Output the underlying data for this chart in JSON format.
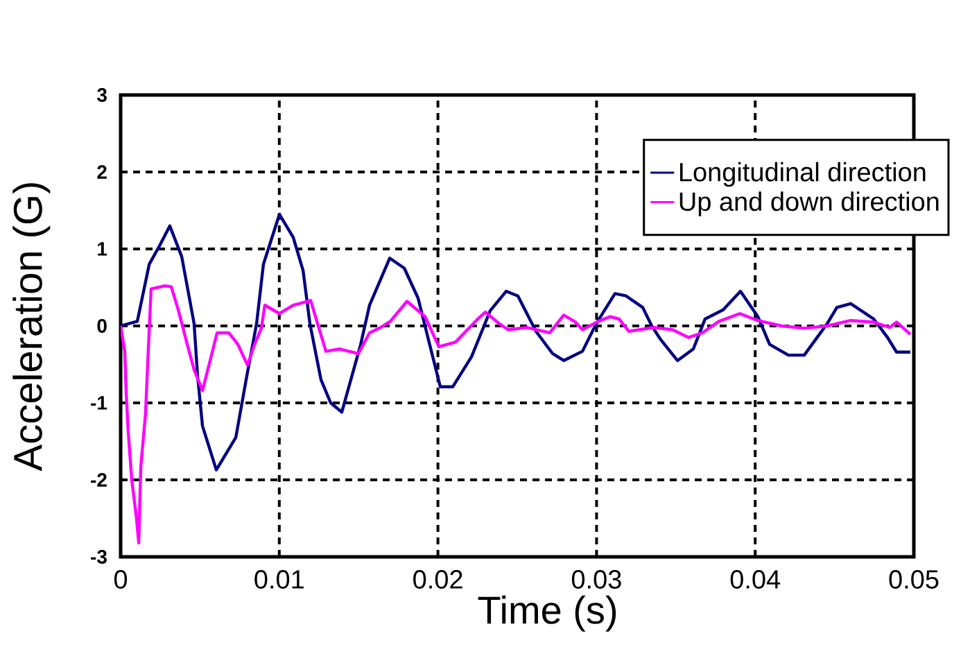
{
  "chart_data": {
    "type": "line",
    "xlabel": "Time (s)",
    "ylabel": "Acceleration (G)",
    "xlim": [
      0,
      0.05
    ],
    "ylim": [
      -3,
      3
    ],
    "xticks": [
      0,
      0.01,
      0.02,
      0.03,
      0.04,
      0.05
    ],
    "yticks": [
      -3,
      -2,
      -1,
      0,
      1,
      2,
      3
    ],
    "grid": true,
    "legend": "top right",
    "marker": "none",
    "line_style": "solid",
    "series": [
      {
        "name": "Longitudinal direction",
        "color": "#000080",
        "x": [
          0,
          0.00105,
          0.0018,
          0.00245,
          0.0031,
          0.00385,
          0.00463,
          0.00485,
          0.00516,
          0.00603,
          0.00726,
          0.00791,
          0.00857,
          0.009,
          0.01001,
          0.01088,
          0.0115,
          0.01193,
          0.01263,
          0.01324,
          0.01394,
          0.01512,
          0.01569,
          0.01696,
          0.01788,
          0.01875,
          0.01949,
          0.02015,
          0.02094,
          0.02212,
          0.0233,
          0.0243,
          0.02504,
          0.02618,
          0.02723,
          0.02793,
          0.02911,
          0.02998,
          0.03116,
          0.03186,
          0.03291,
          0.03348,
          0.03405,
          0.0351,
          0.0361,
          0.03684,
          0.03798,
          0.03907,
          0.04017,
          0.04091,
          0.04209,
          0.04309,
          0.04454,
          0.04515,
          0.04602,
          0.04747,
          0.04834,
          0.04891,
          0.04978
        ],
        "values": [
          0,
          0.06,
          0.8,
          1.04,
          1.3,
          0.9,
          0.03,
          -0.65,
          -1.3,
          -1.87,
          -1.45,
          -0.7,
          0.03,
          0.8,
          1.45,
          1.15,
          0.72,
          0.03,
          -0.7,
          -1.0,
          -1.12,
          -0.25,
          0.27,
          0.88,
          0.75,
          0.36,
          -0.25,
          -0.79,
          -0.79,
          -0.4,
          0.2,
          0.45,
          0.39,
          -0.07,
          -0.36,
          -0.45,
          -0.33,
          0.03,
          0.42,
          0.39,
          0.24,
          0,
          -0.18,
          -0.45,
          -0.3,
          0.09,
          0.21,
          0.45,
          0.12,
          -0.24,
          -0.38,
          -0.38,
          0.03,
          0.24,
          0.29,
          0.09,
          -0.15,
          -0.34,
          -0.34
        ]
      },
      {
        "name": "Up and down direction",
        "color": "#ff00ff",
        "x": [
          0,
          0.00026,
          0.00035,
          0.00048,
          0.0007,
          0.001,
          0.00114,
          0.00127,
          0.00157,
          0.0017,
          0.00192,
          0.00275,
          0.00319,
          0.00363,
          0.0042,
          0.00463,
          0.00516,
          0.00564,
          0.00608,
          0.00682,
          0.00739,
          0.008,
          0.00844,
          0.00887,
          0.00909,
          0.01001,
          0.01088,
          0.01198,
          0.01237,
          0.01294,
          0.01381,
          0.01499,
          0.01569,
          0.0163,
          0.017,
          0.01805,
          0.01919,
          0.02006,
          0.02111,
          0.02242,
          0.02299,
          0.02386,
          0.02443,
          0.02561,
          0.02705,
          0.02793,
          0.02867,
          0.02911,
          0.03011,
          0.03086,
          0.03142,
          0.03204,
          0.03361,
          0.03479,
          0.0358,
          0.03667,
          0.03772,
          0.03903,
          0.04017,
          0.04165,
          0.04309,
          0.04454,
          0.04602,
          0.04747,
          0.04847,
          0.04891,
          0.04978
        ],
        "values": [
          0,
          -0.33,
          -0.87,
          -1.38,
          -2.0,
          -2.5,
          -2.82,
          -1.83,
          -1.14,
          -0.51,
          0.48,
          0.52,
          0.51,
          0.21,
          -0.24,
          -0.57,
          -0.84,
          -0.45,
          -0.09,
          -0.09,
          -0.24,
          -0.51,
          -0.24,
          -0.03,
          0.27,
          0.16,
          0.27,
          0.33,
          0.06,
          -0.33,
          -0.3,
          -0.36,
          -0.09,
          -0.03,
          0.06,
          0.32,
          0.12,
          -0.27,
          -0.21,
          0.07,
          0.18,
          0.03,
          -0.05,
          -0.02,
          -0.09,
          0.14,
          0.05,
          -0.05,
          0.06,
          0.12,
          0.09,
          -0.07,
          -0.02,
          -0.05,
          -0.15,
          -0.09,
          0.06,
          0.16,
          0.07,
          0,
          -0.03,
          0,
          0.07,
          0.05,
          -0.02,
          0.05,
          -0.11
        ]
      }
    ]
  }
}
